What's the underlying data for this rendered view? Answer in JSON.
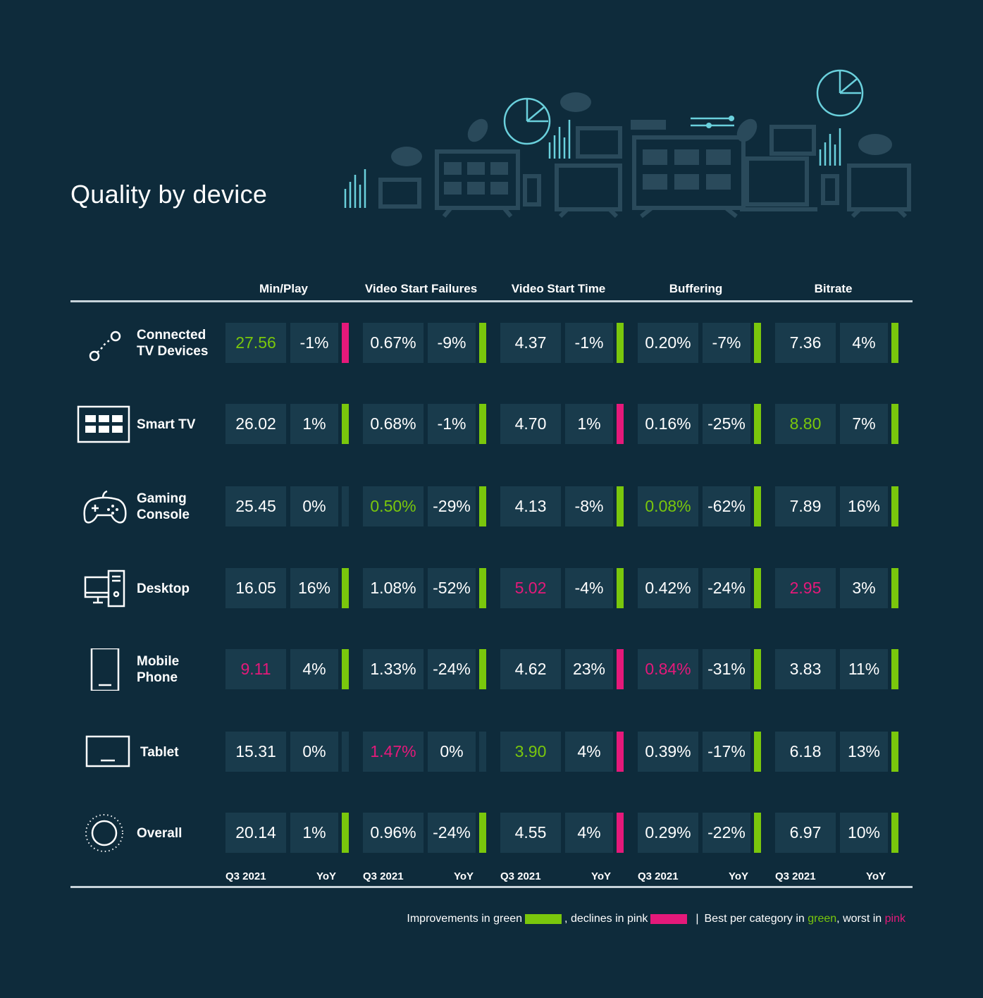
{
  "page": {
    "title": "Quality by device"
  },
  "colors": {
    "background": "#0e2b3b",
    "cell": "#193b4c",
    "green": "#7ac70c",
    "pink": "#e5197a",
    "teal": "#6ad0dc",
    "icon_dim": "#2a4a5b"
  },
  "chart_data": {
    "type": "table",
    "title": "Quality by device",
    "columns": [
      "Min/Play",
      "Video Start Failures",
      "Video Start Time",
      "Buffering",
      "Bitrate"
    ],
    "subcolumns": [
      "Q3 2021",
      "YoY"
    ],
    "rows": [
      {
        "device": "Connected TV Devices",
        "label_lines": [
          "Connected",
          "TV Devices"
        ],
        "icon": "connected-tv-icon",
        "cells": [
          {
            "value": "27.56",
            "value_status": "best",
            "yoy": "-1%",
            "trend": "decline"
          },
          {
            "value": "0.67%",
            "value_status": "neutral",
            "yoy": "-9%",
            "trend": "improvement"
          },
          {
            "value": "4.37",
            "value_status": "neutral",
            "yoy": "-1%",
            "trend": "improvement"
          },
          {
            "value": "0.20%",
            "value_status": "neutral",
            "yoy": "-7%",
            "trend": "improvement"
          },
          {
            "value": "7.36",
            "value_status": "neutral",
            "yoy": "4%",
            "trend": "improvement"
          }
        ]
      },
      {
        "device": "Smart TV",
        "label_lines": [
          "Smart TV"
        ],
        "icon": "smart-tv-icon",
        "cells": [
          {
            "value": "26.02",
            "value_status": "neutral",
            "yoy": "1%",
            "trend": "improvement"
          },
          {
            "value": "0.68%",
            "value_status": "neutral",
            "yoy": "-1%",
            "trend": "improvement"
          },
          {
            "value": "4.70",
            "value_status": "neutral",
            "yoy": "1%",
            "trend": "decline"
          },
          {
            "value": "0.16%",
            "value_status": "neutral",
            "yoy": "-25%",
            "trend": "improvement"
          },
          {
            "value": "8.80",
            "value_status": "best",
            "yoy": "7%",
            "trend": "improvement"
          }
        ]
      },
      {
        "device": "Gaming Console",
        "label_lines": [
          "Gaming",
          "Console"
        ],
        "icon": "gamepad-icon",
        "cells": [
          {
            "value": "25.45",
            "value_status": "neutral",
            "yoy": "0%",
            "trend": "none"
          },
          {
            "value": "0.50%",
            "value_status": "best",
            "yoy": "-29%",
            "trend": "improvement"
          },
          {
            "value": "4.13",
            "value_status": "neutral",
            "yoy": "-8%",
            "trend": "improvement"
          },
          {
            "value": "0.08%",
            "value_status": "best",
            "yoy": "-62%",
            "trend": "improvement"
          },
          {
            "value": "7.89",
            "value_status": "neutral",
            "yoy": "16%",
            "trend": "improvement"
          }
        ]
      },
      {
        "device": "Desktop",
        "label_lines": [
          "Desktop"
        ],
        "icon": "desktop-icon",
        "cells": [
          {
            "value": "16.05",
            "value_status": "neutral",
            "yoy": "16%",
            "trend": "improvement"
          },
          {
            "value": "1.08%",
            "value_status": "neutral",
            "yoy": "-52%",
            "trend": "improvement"
          },
          {
            "value": "5.02",
            "value_status": "worst",
            "yoy": "-4%",
            "trend": "improvement"
          },
          {
            "value": "0.42%",
            "value_status": "neutral",
            "yoy": "-24%",
            "trend": "improvement"
          },
          {
            "value": "2.95",
            "value_status": "worst",
            "yoy": "3%",
            "trend": "improvement"
          }
        ]
      },
      {
        "device": "Mobile Phone",
        "label_lines": [
          "Mobile",
          "Phone"
        ],
        "icon": "mobile-phone-icon",
        "cells": [
          {
            "value": "9.11",
            "value_status": "worst",
            "yoy": "4%",
            "trend": "improvement"
          },
          {
            "value": "1.33%",
            "value_status": "neutral",
            "yoy": "-24%",
            "trend": "improvement"
          },
          {
            "value": "4.62",
            "value_status": "neutral",
            "yoy": "23%",
            "trend": "decline"
          },
          {
            "value": "0.84%",
            "value_status": "worst",
            "yoy": "-31%",
            "trend": "improvement"
          },
          {
            "value": "3.83",
            "value_status": "neutral",
            "yoy": "11%",
            "trend": "improvement"
          }
        ]
      },
      {
        "device": "Tablet",
        "label_lines": [
          "Tablet"
        ],
        "icon": "tablet-icon",
        "cells": [
          {
            "value": "15.31",
            "value_status": "neutral",
            "yoy": "0%",
            "trend": "none"
          },
          {
            "value": "1.47%",
            "value_status": "worst",
            "yoy": "0%",
            "trend": "none"
          },
          {
            "value": "3.90",
            "value_status": "best",
            "yoy": "4%",
            "trend": "decline"
          },
          {
            "value": "0.39%",
            "value_status": "neutral",
            "yoy": "-17%",
            "trend": "improvement"
          },
          {
            "value": "6.18",
            "value_status": "neutral",
            "yoy": "13%",
            "trend": "improvement"
          }
        ]
      },
      {
        "device": "Overall",
        "label_lines": [
          "Overall"
        ],
        "icon": "overall-circle-icon",
        "cells": [
          {
            "value": "20.14",
            "value_status": "neutral",
            "yoy": "1%",
            "trend": "improvement"
          },
          {
            "value": "0.96%",
            "value_status": "neutral",
            "yoy": "-24%",
            "trend": "improvement"
          },
          {
            "value": "4.55",
            "value_status": "neutral",
            "yoy": "4%",
            "trend": "decline"
          },
          {
            "value": "0.29%",
            "value_status": "neutral",
            "yoy": "-22%",
            "trend": "improvement"
          },
          {
            "value": "6.97",
            "value_status": "neutral",
            "yoy": "10%",
            "trend": "improvement"
          }
        ]
      }
    ]
  },
  "legend": {
    "part1": "Improvements in green",
    "part2": ", declines in pink",
    "separator": "|",
    "part3": "Best per category in ",
    "green_word": "green",
    "part4": ", worst in ",
    "pink_word": "pink"
  }
}
